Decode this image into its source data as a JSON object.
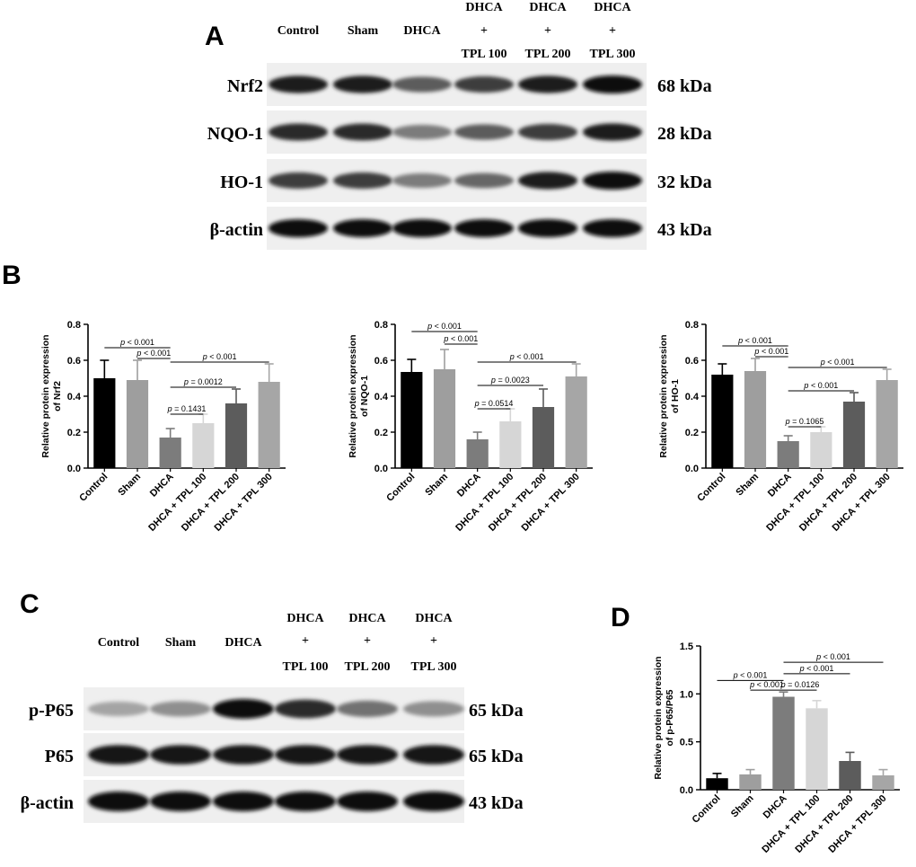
{
  "panel_labels": {
    "a": "A",
    "b": "B",
    "c": "C",
    "d": "D"
  },
  "blot_a": {
    "lanes": [
      {
        "lines": [
          "Control"
        ]
      },
      {
        "lines": [
          "Sham"
        ]
      },
      {
        "lines": [
          "DHCA"
        ]
      },
      {
        "lines": [
          "DHCA",
          "+",
          "TPL 100"
        ]
      },
      {
        "lines": [
          "DHCA",
          "+",
          "TPL 200"
        ]
      },
      {
        "lines": [
          "DHCA",
          "+",
          "TPL 300"
        ]
      }
    ],
    "rows": [
      {
        "label": "Nrf2",
        "kda": "68 kDa",
        "intensity": [
          0.9,
          0.9,
          0.6,
          0.75,
          0.9,
          1.0
        ]
      },
      {
        "label": "NQO-1",
        "kda": "28 kDa",
        "intensity": [
          0.85,
          0.85,
          0.45,
          0.6,
          0.75,
          0.9
        ]
      },
      {
        "label": "HO-1",
        "kda": "32 kDa",
        "intensity": [
          0.75,
          0.75,
          0.45,
          0.55,
          0.9,
          1.0
        ]
      },
      {
        "label": "β-actin",
        "kda": "43 kDa",
        "intensity": [
          1.0,
          1.0,
          1.0,
          1.0,
          1.0,
          1.0
        ]
      }
    ]
  },
  "blot_c": {
    "lanes": [
      {
        "lines": [
          "Control"
        ]
      },
      {
        "lines": [
          "Sham"
        ]
      },
      {
        "lines": [
          "DHCA"
        ]
      },
      {
        "lines": [
          "DHCA",
          "+",
          "TPL 100"
        ]
      },
      {
        "lines": [
          "DHCA",
          "+",
          "TPL 200"
        ]
      },
      {
        "lines": [
          "DHCA",
          "+",
          "TPL 300"
        ]
      }
    ],
    "rows": [
      {
        "label": "p-P65",
        "kda": "65 kDa",
        "intensity": [
          0.25,
          0.35,
          1.0,
          0.85,
          0.5,
          0.35
        ]
      },
      {
        "label": "P65",
        "kda": "65 kDa",
        "intensity": [
          0.95,
          0.95,
          0.95,
          0.95,
          0.95,
          0.95
        ]
      },
      {
        "label": "β-actin",
        "kda": "43 kDa",
        "intensity": [
          1.0,
          1.0,
          1.0,
          1.0,
          1.0,
          1.0
        ]
      }
    ]
  },
  "chart_data": [
    {
      "type": "bar",
      "categories": [
        "Control",
        "Sham",
        "DHCA",
        "DHCA + TPL 100",
        "DHCA + TPL 200",
        "DHCA + TPL 300"
      ],
      "values": [
        0.5,
        0.49,
        0.17,
        0.25,
        0.36,
        0.48
      ],
      "errors": [
        0.1,
        0.11,
        0.05,
        0.05,
        0.08,
        0.1
      ],
      "colors": [
        "#000000",
        "#9e9e9e",
        "#7c7c7c",
        "#d6d6d6",
        "#5c5c5c",
        "#a6a6a6"
      ],
      "ylabel": "Relative protein expression\nof Nrf2",
      "ylim": [
        0,
        0.8
      ],
      "yticks": [
        0.0,
        0.2,
        0.4,
        0.6,
        0.8
      ],
      "tick_decimals": 1,
      "comparisons": [
        {
          "from": 0,
          "to": 2,
          "label": "p < 0.001",
          "y": 0.67
        },
        {
          "from": 1,
          "to": 2,
          "label": "p < 0.001",
          "y": 0.61
        },
        {
          "from": 2,
          "to": 5,
          "label": "p < 0.001",
          "y": 0.59
        },
        {
          "from": 2,
          "to": 4,
          "label": "p = 0.0012",
          "y": 0.45
        },
        {
          "from": 2,
          "to": 3,
          "label": "p = 0.1431",
          "y": 0.3
        }
      ]
    },
    {
      "type": "bar",
      "categories": [
        "Control",
        "Sham",
        "DHCA",
        "DHCA + TPL 100",
        "DHCA + TPL 200",
        "DHCA + TPL 300"
      ],
      "values": [
        0.535,
        0.55,
        0.16,
        0.26,
        0.34,
        0.51
      ],
      "errors": [
        0.07,
        0.11,
        0.04,
        0.07,
        0.1,
        0.07
      ],
      "colors": [
        "#000000",
        "#9e9e9e",
        "#7c7c7c",
        "#d6d6d6",
        "#5c5c5c",
        "#a6a6a6"
      ],
      "ylabel": "Relative protein expression\nof NQO-1",
      "ylim": [
        0,
        0.8
      ],
      "yticks": [
        0.0,
        0.2,
        0.4,
        0.6,
        0.8
      ],
      "tick_decimals": 1,
      "comparisons": [
        {
          "from": 0,
          "to": 2,
          "label": "p < 0.001",
          "y": 0.76
        },
        {
          "from": 1,
          "to": 2,
          "label": "p < 0.001",
          "y": 0.69
        },
        {
          "from": 2,
          "to": 5,
          "label": "p < 0.001",
          "y": 0.59
        },
        {
          "from": 2,
          "to": 4,
          "label": "p = 0.0023",
          "y": 0.46
        },
        {
          "from": 2,
          "to": 3,
          "label": "p = 0.0514",
          "y": 0.33
        }
      ]
    },
    {
      "type": "bar",
      "categories": [
        "Control",
        "Sham",
        "DHCA",
        "DHCA + TPL 100",
        "DHCA + TPL 200",
        "DHCA + TPL 300"
      ],
      "values": [
        0.52,
        0.54,
        0.15,
        0.2,
        0.37,
        0.49
      ],
      "errors": [
        0.06,
        0.07,
        0.03,
        0.03,
        0.05,
        0.06
      ],
      "colors": [
        "#000000",
        "#9e9e9e",
        "#7c7c7c",
        "#d6d6d6",
        "#5c5c5c",
        "#a6a6a6"
      ],
      "ylabel": "Relative protein expression\nof HO-1",
      "ylim": [
        0,
        0.8
      ],
      "yticks": [
        0.0,
        0.2,
        0.4,
        0.6,
        0.8
      ],
      "tick_decimals": 1,
      "comparisons": [
        {
          "from": 0,
          "to": 2,
          "label": "p < 0.001",
          "y": 0.68
        },
        {
          "from": 1,
          "to": 2,
          "label": "p < 0.001",
          "y": 0.62
        },
        {
          "from": 2,
          "to": 5,
          "label": "p < 0.001",
          "y": 0.56
        },
        {
          "from": 2,
          "to": 4,
          "label": "p < 0.001",
          "y": 0.43
        },
        {
          "from": 2,
          "to": 3,
          "label": "p = 0.1065",
          "y": 0.23
        }
      ]
    },
    {
      "type": "bar",
      "categories": [
        "Control",
        "Sham",
        "DHCA",
        "DHCA + TPL 100",
        "DHCA + TPL 200",
        "DHCA + TPL 300"
      ],
      "values": [
        0.12,
        0.16,
        0.97,
        0.85,
        0.3,
        0.15
      ],
      "errors": [
        0.05,
        0.05,
        0.05,
        0.08,
        0.09,
        0.06
      ],
      "colors": [
        "#000000",
        "#9e9e9e",
        "#7c7c7c",
        "#d6d6d6",
        "#5c5c5c",
        "#a6a6a6"
      ],
      "ylabel": "Relative protein expression\nof p-P65/P65",
      "ylim": [
        0,
        1.5
      ],
      "yticks": [
        0.0,
        0.5,
        1.0,
        1.5
      ],
      "tick_decimals": 1,
      "comparisons": [
        {
          "from": 2,
          "to": 5,
          "label": "p < 0.001",
          "y": 1.33
        },
        {
          "from": 2,
          "to": 4,
          "label": "p < 0.001",
          "y": 1.21
        },
        {
          "from": 0,
          "to": 2,
          "label": "p < 0.001",
          "y": 1.14
        },
        {
          "from": 1,
          "to": 2,
          "label": "p < 0.001",
          "y": 1.04
        },
        {
          "from": 2,
          "to": 3,
          "label": "p = 0.0126",
          "y": 1.04
        }
      ]
    }
  ]
}
